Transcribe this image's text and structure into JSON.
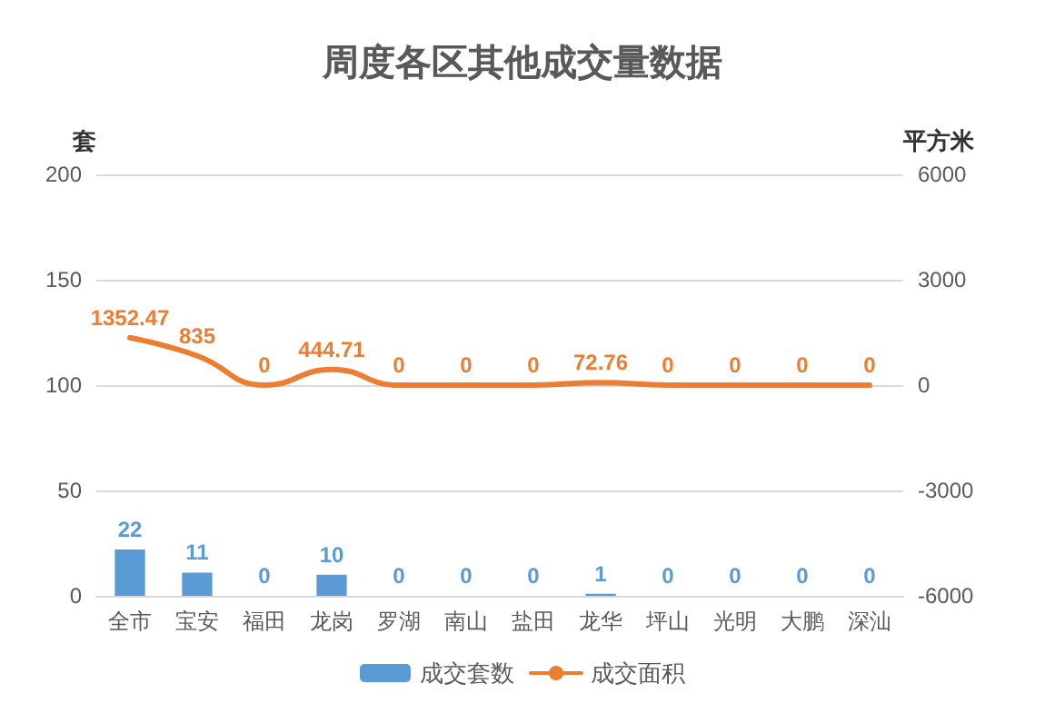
{
  "chart_data": {
    "type": "bar",
    "title": "周度各区其他成交量数据",
    "ylabel": "套",
    "y2label": "平方米",
    "categories": [
      "全市",
      "宝安",
      "福田",
      "龙岗",
      "罗湖",
      "南山",
      "盐田",
      "龙华",
      "坪山",
      "光明",
      "大鹏",
      "深汕"
    ],
    "series": [
      {
        "name": "成交套数",
        "color": "#5b9bd5",
        "values": [
          22,
          11,
          0,
          10,
          0,
          0,
          0,
          1,
          0,
          0,
          0,
          0
        ]
      },
      {
        "name": "成交面积",
        "type": "line",
        "axis": "y2",
        "color": "#ed7d31",
        "values": [
          1352.47,
          835,
          0,
          444.71,
          0,
          0,
          0,
          72.76,
          0,
          0,
          0,
          0
        ]
      }
    ],
    "ylim": [
      0,
      200
    ],
    "yticks": [
      0,
      50,
      100,
      150,
      200
    ],
    "y2lim": [
      -6000,
      6000
    ],
    "y2ticks": [
      -6000,
      -3000,
      0,
      3000,
      6000
    ],
    "grid": "y",
    "legend": "bottom",
    "data_labels": true,
    "marker": "none"
  }
}
